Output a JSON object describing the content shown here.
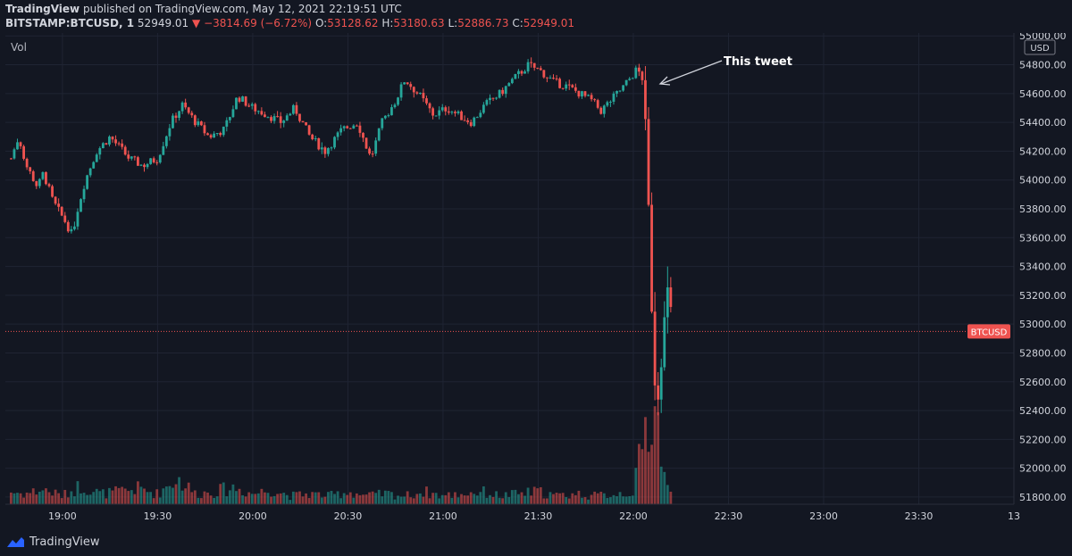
{
  "header": {
    "brand": "TradingView",
    "published_text": "published on TradingView.com, May 12, 2021 22:19:51 UTC"
  },
  "symbol_bar": {
    "symbol": "BITSTAMP:BTCUSD, 1",
    "last": "52949.01",
    "change": "−3814.69 (−6.72%)",
    "open_label": "O:",
    "open": "53128.62",
    "high_label": "H:",
    "high": "53180.63",
    "low_label": "L:",
    "low": "52886.73",
    "close_label": "C:",
    "close": "52949.01"
  },
  "vol_label": "Vol",
  "annotation": "This tweet",
  "price_tag": "BTCUSD",
  "footer": {
    "brand": "TradingView"
  },
  "colors": {
    "up": "#26a69a",
    "down": "#ef5350",
    "background": "#131722",
    "grid": "#1f2433",
    "text": "#d1d4dc"
  },
  "chart_data": {
    "type": "candlestick",
    "currency": "USD",
    "y_axis_ticks": [
      51800,
      52000,
      52200,
      52400,
      52600,
      52800,
      53000,
      53200,
      53400,
      53600,
      53800,
      54000,
      54200,
      54400,
      54600,
      54800,
      55000
    ],
    "x_axis_ticks": [
      "19:00",
      "19:30",
      "20:00",
      "20:30",
      "21:00",
      "21:30",
      "22:00",
      "22:30",
      "23:00",
      "23:30",
      "13"
    ],
    "ylim": [
      51750,
      55020
    ],
    "last_price": 52949.01,
    "close_path": [
      [
        18.73,
        54150
      ],
      [
        18.77,
        54300
      ],
      [
        18.81,
        54100
      ],
      [
        18.87,
        53950
      ],
      [
        18.9,
        54050
      ],
      [
        18.95,
        53850
      ],
      [
        19.02,
        53700
      ],
      [
        19.05,
        53620
      ],
      [
        19.08,
        53800
      ],
      [
        19.12,
        54000
      ],
      [
        19.18,
        54200
      ],
      [
        19.25,
        54300
      ],
      [
        19.35,
        54150
      ],
      [
        19.42,
        54100
      ],
      [
        19.5,
        54150
      ],
      [
        19.57,
        54400
      ],
      [
        19.63,
        54520
      ],
      [
        19.7,
        54400
      ],
      [
        19.77,
        54300
      ],
      [
        19.85,
        54350
      ],
      [
        19.92,
        54580
      ],
      [
        20.0,
        54500
      ],
      [
        20.08,
        54450
      ],
      [
        20.15,
        54400
      ],
      [
        20.22,
        54500
      ],
      [
        20.3,
        54300
      ],
      [
        20.38,
        54200
      ],
      [
        20.47,
        54350
      ],
      [
        20.55,
        54400
      ],
      [
        20.62,
        54150
      ],
      [
        20.68,
        54400
      ],
      [
        20.75,
        54550
      ],
      [
        20.8,
        54700
      ],
      [
        20.88,
        54580
      ],
      [
        20.95,
        54450
      ],
      [
        21.02,
        54500
      ],
      [
        21.08,
        54450
      ],
      [
        21.15,
        54400
      ],
      [
        21.22,
        54520
      ],
      [
        21.3,
        54600
      ],
      [
        21.37,
        54700
      ],
      [
        21.45,
        54800
      ],
      [
        21.52,
        54750
      ],
      [
        21.58,
        54680
      ],
      [
        21.65,
        54650
      ],
      [
        21.72,
        54600
      ],
      [
        21.78,
        54550
      ],
      [
        21.83,
        54480
      ],
      [
        21.88,
        54550
      ],
      [
        21.95,
        54650
      ],
      [
        22.02,
        54770
      ],
      [
        22.05,
        54700
      ],
      [
        22.07,
        54150
      ],
      [
        22.09,
        53400
      ],
      [
        22.11,
        52650
      ],
      [
        22.13,
        52550
      ],
      [
        22.15,
        52850
      ],
      [
        22.18,
        53200
      ],
      [
        22.21,
        52949
      ]
    ],
    "volume_scale": "relative (0 to 1)",
    "volume_points": [
      [
        18.72,
        0.12
      ],
      [
        18.8,
        0.1
      ],
      [
        18.9,
        0.14
      ],
      [
        19.0,
        0.08
      ],
      [
        19.1,
        0.18
      ],
      [
        19.2,
        0.1
      ],
      [
        19.3,
        0.12
      ],
      [
        19.4,
        0.15
      ],
      [
        19.5,
        0.1
      ],
      [
        19.6,
        0.25
      ],
      [
        19.7,
        0.1
      ],
      [
        19.8,
        0.12
      ],
      [
        19.9,
        0.16
      ],
      [
        20.0,
        0.1
      ],
      [
        20.1,
        0.14
      ],
      [
        20.2,
        0.08
      ],
      [
        20.3,
        0.1
      ],
      [
        20.4,
        0.08
      ],
      [
        20.5,
        0.12
      ],
      [
        20.6,
        0.08
      ],
      [
        20.7,
        0.1
      ],
      [
        20.8,
        0.08
      ],
      [
        20.9,
        0.12
      ],
      [
        21.0,
        0.08
      ],
      [
        21.1,
        0.1
      ],
      [
        21.2,
        0.12
      ],
      [
        21.3,
        0.08
      ],
      [
        21.4,
        0.1
      ],
      [
        21.5,
        0.12
      ],
      [
        21.6,
        0.08
      ],
      [
        21.7,
        0.1
      ],
      [
        21.8,
        0.08
      ],
      [
        21.9,
        0.1
      ],
      [
        22.0,
        0.12
      ],
      [
        22.07,
        0.75
      ],
      [
        22.1,
        0.95
      ],
      [
        22.12,
        0.9
      ],
      [
        22.14,
        0.6
      ],
      [
        22.16,
        0.35
      ],
      [
        22.18,
        0.15
      ],
      [
        22.2,
        0.08
      ]
    ]
  }
}
